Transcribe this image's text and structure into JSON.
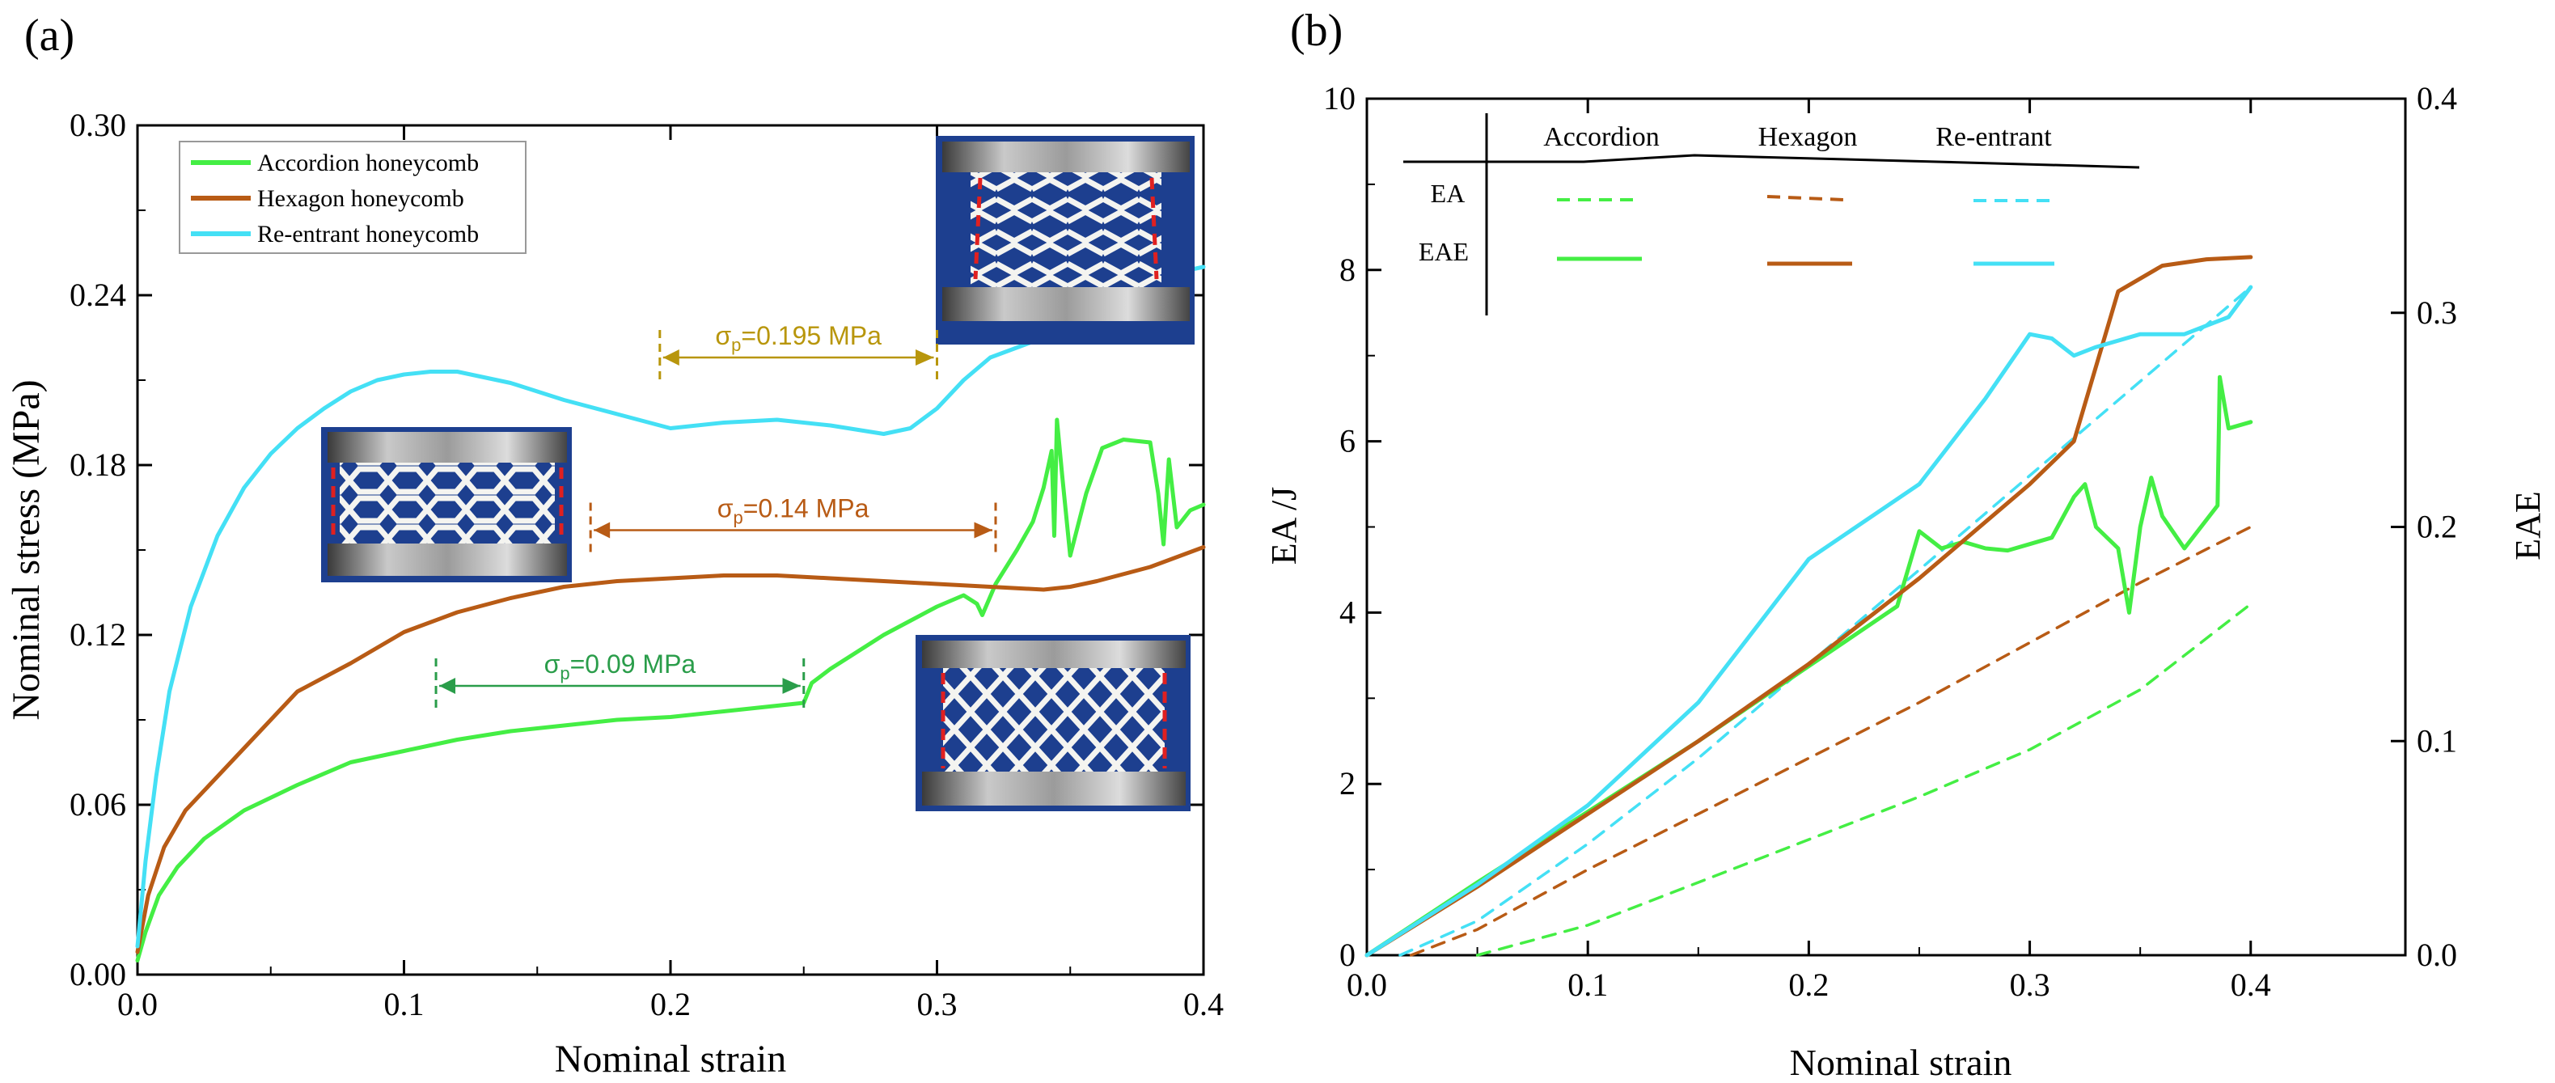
{
  "figure": {
    "panel_a_label": "(a)",
    "panel_b_label": "(b)"
  },
  "chart_data": [
    {
      "type": "line",
      "panel": "(a)",
      "xlabel": "Nominal strain",
      "ylabel": "Nominal stress (MPa)",
      "xlim": [
        0,
        0.4
      ],
      "ylim": [
        0,
        0.3
      ],
      "x_ticks": [
        "0.0",
        "0.1",
        "0.2",
        "0.3",
        "0.4"
      ],
      "y_ticks": [
        "0.00",
        "0.06",
        "0.12",
        "0.18",
        "0.24",
        "0.30"
      ],
      "grid": false,
      "legend_position": "top-left",
      "series": [
        {
          "name": "Accordion honeycomb",
          "color": "#44ee44",
          "x": [
            0,
            0.003,
            0.008,
            0.015,
            0.025,
            0.04,
            0.06,
            0.08,
            0.1,
            0.12,
            0.14,
            0.16,
            0.18,
            0.2,
            0.22,
            0.24,
            0.25,
            0.253,
            0.26,
            0.27,
            0.28,
            0.29,
            0.3,
            0.31,
            0.315,
            0.317,
            0.322,
            0.33,
            0.336,
            0.34,
            0.343,
            0.344,
            0.345,
            0.347,
            0.35,
            0.356,
            0.362,
            0.37,
            0.38,
            0.383,
            0.385,
            0.387,
            0.39,
            0.395,
            0.4
          ],
          "y": [
            0.005,
            0.015,
            0.028,
            0.038,
            0.048,
            0.058,
            0.067,
            0.075,
            0.079,
            0.083,
            0.086,
            0.088,
            0.09,
            0.091,
            0.093,
            0.095,
            0.096,
            0.103,
            0.108,
            0.114,
            0.12,
            0.125,
            0.13,
            0.134,
            0.131,
            0.127,
            0.138,
            0.15,
            0.16,
            0.172,
            0.185,
            0.155,
            0.196,
            0.176,
            0.148,
            0.17,
            0.186,
            0.189,
            0.188,
            0.17,
            0.152,
            0.182,
            0.158,
            0.164,
            0.166
          ]
        },
        {
          "name": "Hexagon honeycomb",
          "color": "#b85b15",
          "x": [
            0,
            0.004,
            0.01,
            0.018,
            0.03,
            0.045,
            0.06,
            0.08,
            0.1,
            0.12,
            0.14,
            0.16,
            0.18,
            0.2,
            0.22,
            0.24,
            0.26,
            0.28,
            0.3,
            0.32,
            0.34,
            0.35,
            0.36,
            0.38,
            0.4
          ],
          "y": [
            0.008,
            0.028,
            0.045,
            0.058,
            0.07,
            0.085,
            0.1,
            0.11,
            0.121,
            0.128,
            0.133,
            0.137,
            0.139,
            0.14,
            0.141,
            0.141,
            0.14,
            0.139,
            0.138,
            0.137,
            0.136,
            0.137,
            0.139,
            0.144,
            0.151
          ]
        },
        {
          "name": "Re-entrant honeycomb",
          "color": "#44e0f5",
          "x": [
            0,
            0.003,
            0.007,
            0.012,
            0.02,
            0.03,
            0.04,
            0.05,
            0.06,
            0.07,
            0.08,
            0.09,
            0.1,
            0.11,
            0.12,
            0.14,
            0.16,
            0.18,
            0.2,
            0.22,
            0.24,
            0.26,
            0.28,
            0.29,
            0.3,
            0.31,
            0.32,
            0.34,
            0.36,
            0.38,
            0.39,
            0.4
          ],
          "y": [
            0.01,
            0.04,
            0.07,
            0.1,
            0.13,
            0.155,
            0.172,
            0.184,
            0.193,
            0.2,
            0.206,
            0.21,
            0.212,
            0.213,
            0.213,
            0.209,
            0.203,
            0.198,
            0.193,
            0.195,
            0.196,
            0.194,
            0.191,
            0.193,
            0.2,
            0.21,
            0.218,
            0.225,
            0.233,
            0.242,
            0.248,
            0.25
          ]
        }
      ],
      "annotations": [
        {
          "text": "σp=0.195 MPa",
          "symbol": "σ",
          "subscript": "p",
          "rest": "=0.195 MPa",
          "color": "#b8960c",
          "x_from": 0.196,
          "x_to": 0.3,
          "y": 0.218
        },
        {
          "text": "σp=0.14 MPa",
          "symbol": "σ",
          "subscript": "p",
          "rest": "=0.14 MPa",
          "color": "#b85b15",
          "x_from": 0.17,
          "x_to": 0.322,
          "y": 0.157
        },
        {
          "text": "σp=0.09 MPa",
          "symbol": "σ",
          "subscript": "p",
          "rest": "=0.09 MPa",
          "color": "#2a9d4a",
          "x_from": 0.112,
          "x_to": 0.25,
          "y": 0.102
        }
      ]
    },
    {
      "type": "line",
      "panel": "(b)",
      "xlabel": "Nominal strain",
      "ylabel": "EA /J",
      "y2label": "EAE",
      "xlim": [
        0,
        0.47
      ],
      "ylim": [
        0,
        10
      ],
      "y2lim": [
        0,
        0.4
      ],
      "x_ticks": [
        "0.0",
        "0.1",
        "0.2",
        "0.3",
        "0.4"
      ],
      "y_ticks": [
        "0",
        "2",
        "4",
        "6",
        "8",
        "10"
      ],
      "y2_ticks": [
        "0.0",
        "0.1",
        "0.2",
        "0.3",
        "0.4"
      ],
      "grid": false,
      "legend": {
        "columns": [
          "Accordion",
          "Hexagon",
          "Re-entrant"
        ],
        "rows": [
          "EA",
          "EAE"
        ],
        "position": "top-left"
      },
      "series": [
        {
          "name": "Accordion EA",
          "color": "#44ee44",
          "style": "dashed",
          "axis": "left",
          "x": [
            0.05,
            0.1,
            0.15,
            0.2,
            0.25,
            0.3,
            0.35,
            0.4
          ],
          "y": [
            0.0,
            0.35,
            0.85,
            1.35,
            1.85,
            2.4,
            3.1,
            4.1
          ]
        },
        {
          "name": "Hexagon EA",
          "color": "#b85b15",
          "style": "dashed",
          "axis": "left",
          "x": [
            0.02,
            0.05,
            0.1,
            0.15,
            0.2,
            0.25,
            0.3,
            0.35,
            0.4
          ],
          "y": [
            0.0,
            0.3,
            1.0,
            1.65,
            2.3,
            2.95,
            3.65,
            4.35,
            5.0
          ]
        },
        {
          "name": "Re-entrant EA",
          "color": "#44e0f5",
          "style": "dashed",
          "axis": "left",
          "x": [
            0.015,
            0.05,
            0.1,
            0.15,
            0.2,
            0.25,
            0.3,
            0.35,
            0.4
          ],
          "y": [
            0.0,
            0.4,
            1.3,
            2.3,
            3.4,
            4.5,
            5.6,
            6.7,
            7.8
          ]
        },
        {
          "name": "Accordion EAE",
          "color": "#44ee44",
          "style": "solid",
          "axis": "right",
          "x": [
            0,
            0.05,
            0.1,
            0.15,
            0.2,
            0.24,
            0.25,
            0.26,
            0.27,
            0.28,
            0.29,
            0.3,
            0.31,
            0.32,
            0.325,
            0.33,
            0.34,
            0.345,
            0.35,
            0.355,
            0.36,
            0.37,
            0.385,
            0.386,
            0.39,
            0.4
          ],
          "y": [
            0,
            0.034,
            0.067,
            0.1,
            0.135,
            0.163,
            0.198,
            0.19,
            0.193,
            0.19,
            0.189,
            0.192,
            0.195,
            0.214,
            0.22,
            0.2,
            0.19,
            0.16,
            0.2,
            0.223,
            0.205,
            0.19,
            0.21,
            0.27,
            0.246,
            0.249
          ]
        },
        {
          "name": "Hexagon EAE",
          "color": "#b85b15",
          "style": "solid",
          "axis": "right",
          "x": [
            0,
            0.05,
            0.1,
            0.15,
            0.2,
            0.25,
            0.3,
            0.32,
            0.34,
            0.36,
            0.38,
            0.4
          ],
          "y": [
            0,
            0.032,
            0.066,
            0.1,
            0.136,
            0.176,
            0.22,
            0.24,
            0.31,
            0.322,
            0.325,
            0.326
          ]
        },
        {
          "name": "Re-entrant EAE",
          "color": "#44e0f5",
          "style": "solid",
          "axis": "right",
          "x": [
            0,
            0.05,
            0.1,
            0.15,
            0.2,
            0.25,
            0.28,
            0.3,
            0.31,
            0.32,
            0.33,
            0.35,
            0.37,
            0.39,
            0.4
          ],
          "y": [
            0,
            0.033,
            0.07,
            0.118,
            0.185,
            0.22,
            0.26,
            0.29,
            0.288,
            0.28,
            0.284,
            0.29,
            0.29,
            0.298,
            0.312
          ]
        }
      ]
    }
  ]
}
